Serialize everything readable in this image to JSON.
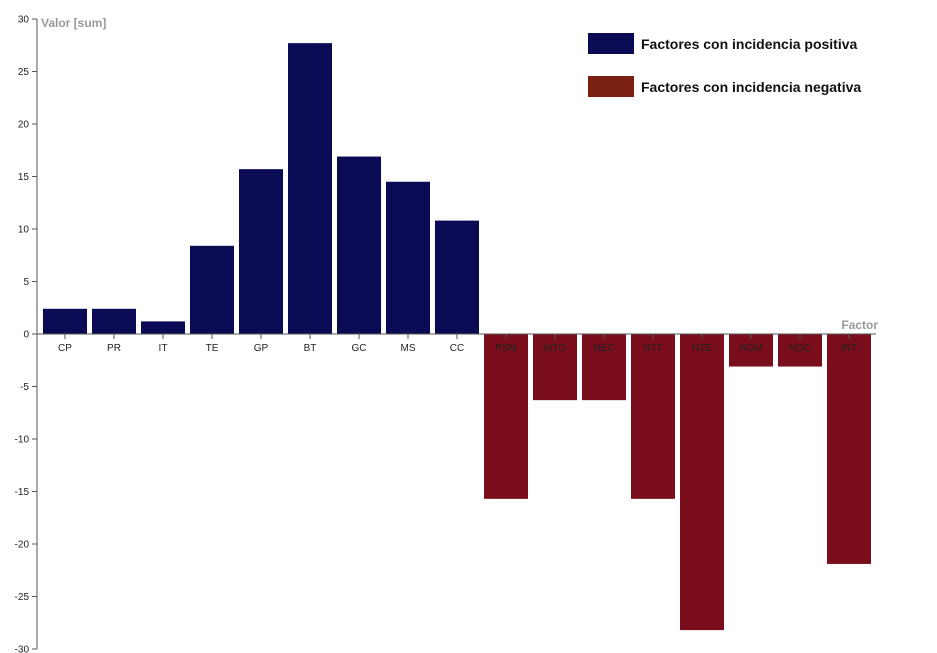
{
  "chart_data": {
    "type": "bar",
    "title": "",
    "xlabel": "Factor",
    "ylabel": "Valor [sum]",
    "ylim": [
      -30,
      30
    ],
    "yticks": [
      30,
      25,
      20,
      15,
      10,
      5,
      0,
      -5,
      -10,
      -15,
      -20,
      -25,
      -30
    ],
    "grid": false,
    "legend_position": "top-right",
    "colors": {
      "positive": "#0a0a55",
      "negative": "#7a0e1c"
    },
    "series": [
      {
        "name": "Factores con incidencia positiva",
        "color": "#0a0a55"
      },
      {
        "name": "Factores con incidencia negativa",
        "color": "#7a0e1c"
      }
    ],
    "legend_swatches": [
      "#0a0a55",
      "#7a2010"
    ],
    "categories": [
      "CP",
      "PR",
      "IT",
      "TE",
      "GP",
      "BT",
      "GC",
      "MS",
      "CC",
      "PSM",
      "MTO",
      "NEC",
      "NTT",
      "NTE",
      "NGM",
      "NGC",
      "INT"
    ],
    "values": [
      2.4,
      2.4,
      1.2,
      8.4,
      15.7,
      27.7,
      16.9,
      14.5,
      10.8,
      -15.7,
      -6.3,
      -6.3,
      -15.7,
      -28.2,
      -3.1,
      -3.1,
      -21.9
    ]
  }
}
